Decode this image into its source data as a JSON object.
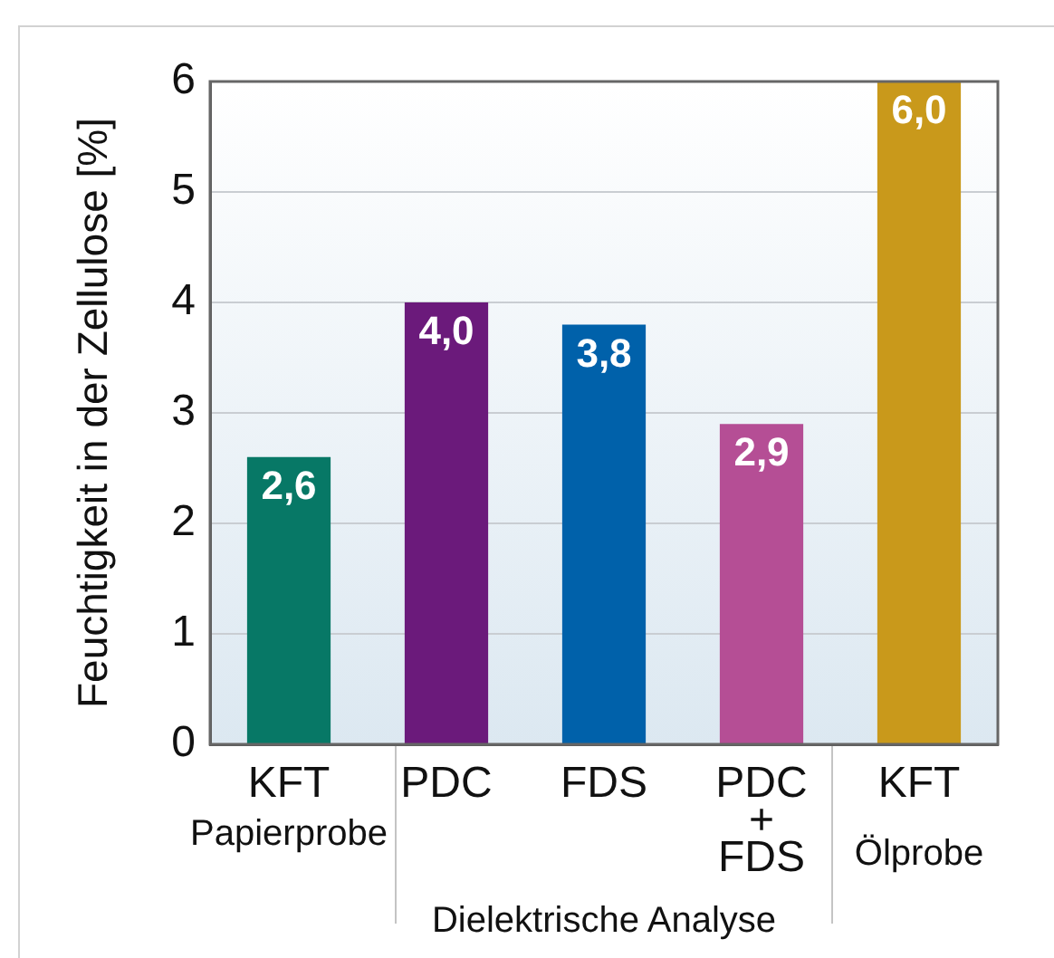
{
  "chart_data": {
    "type": "bar",
    "ylabel": "Feuchtigkeit in der Zellulose [%]",
    "categories": [
      "KFT",
      "PDC",
      "FDS",
      "PDC\n+\nFDS",
      "KFT"
    ],
    "values": [
      2.6,
      4.0,
      3.8,
      2.9,
      6.0
    ],
    "colors": [
      "#077866",
      "#6b1a7b",
      "#0061aa",
      "#b54e95",
      "#c9991b"
    ],
    "value_labels": [
      "2,6",
      "4,0",
      "3,8",
      "2,9",
      "6,0"
    ],
    "ylim": [
      0,
      6
    ],
    "yticks": [
      0,
      1,
      2,
      3,
      4,
      5,
      6
    ],
    "grid": "y",
    "annotations": [
      "Papierprobe",
      "Dielektrische Analyse",
      "Ölprobe"
    ]
  }
}
